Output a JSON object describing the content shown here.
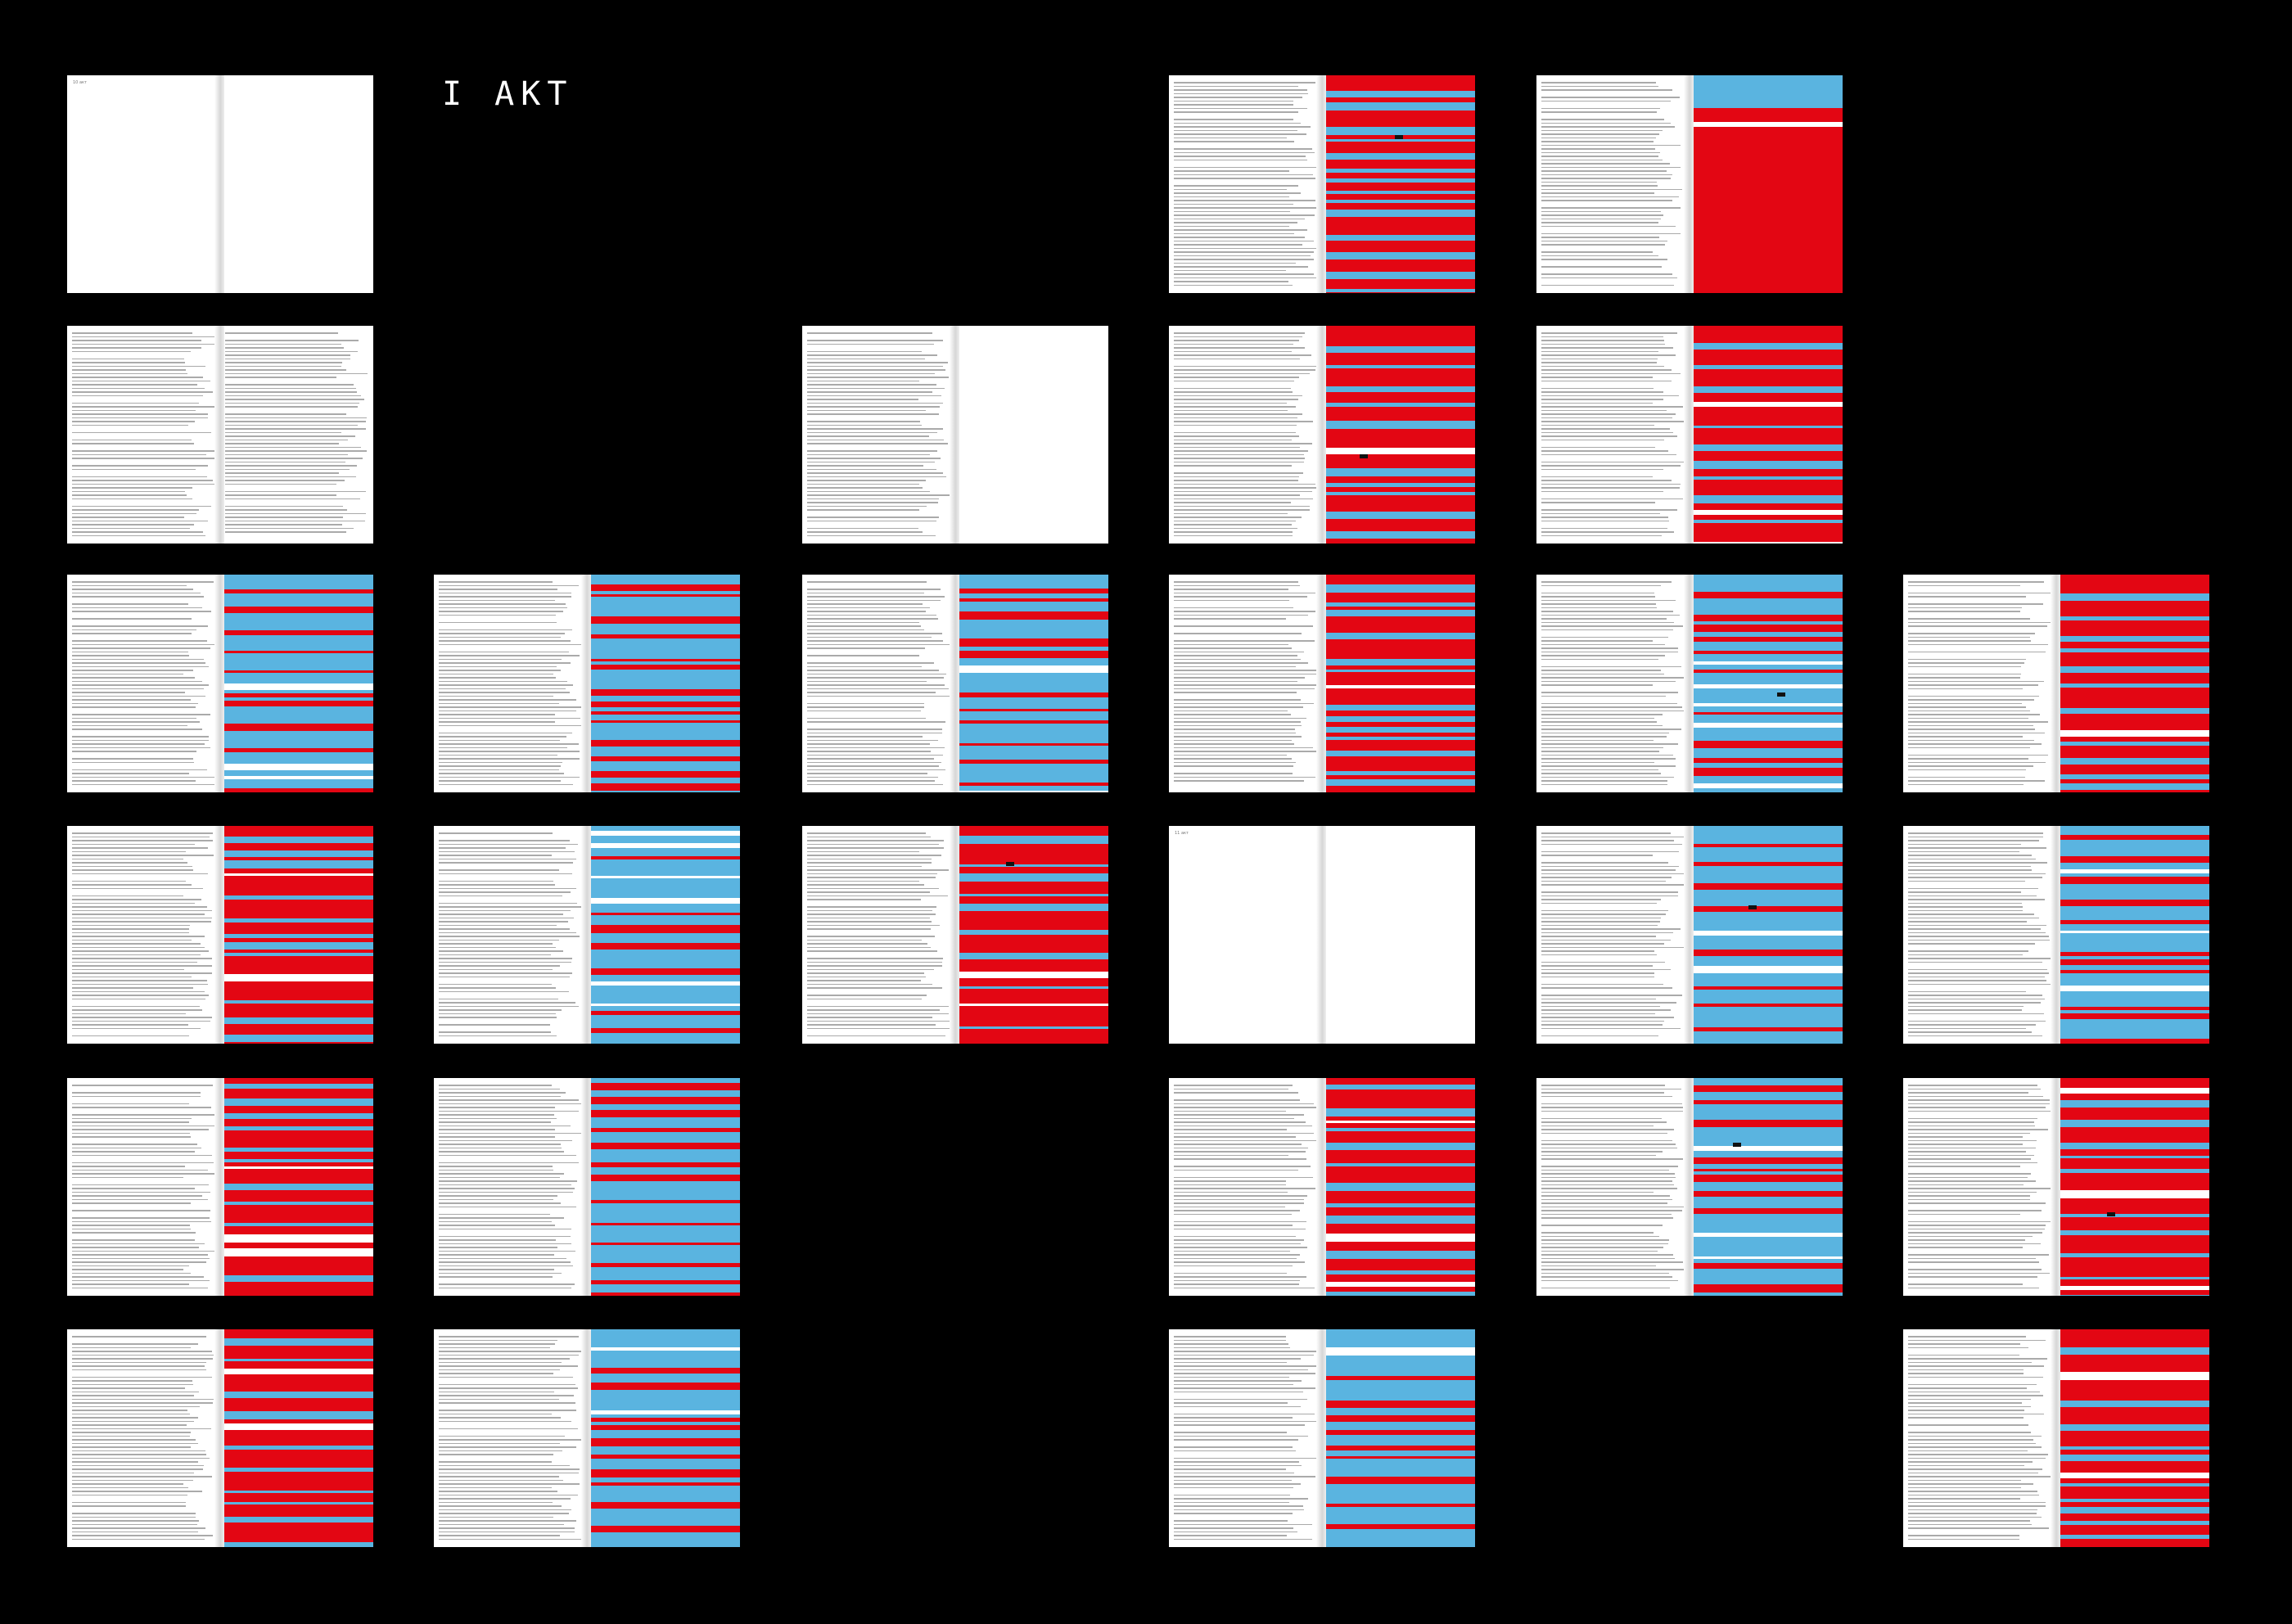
{
  "title": "I АКТ",
  "colors": {
    "red": "#e30613",
    "blue": "#5ab4e0",
    "white": "#ffffff",
    "background": "#000000"
  },
  "spreads": [
    {
      "pattern": "blank",
      "page_label": "10 акт"
    },
    {
      "pattern": "red"
    },
    {
      "pattern": "blue-top"
    },
    {
      "pattern": "text"
    },
    {
      "pattern": "none"
    },
    {
      "pattern": "red"
    },
    {
      "pattern": "red"
    },
    {
      "pattern": "blue"
    },
    {
      "pattern": "blue"
    },
    {
      "pattern": "blue"
    },
    {
      "pattern": "red"
    },
    {
      "pattern": "blue"
    },
    {
      "pattern": "red"
    },
    {
      "pattern": "red"
    },
    {
      "pattern": "blue"
    },
    {
      "pattern": "red"
    },
    {
      "pattern": "blank",
      "page_label": "11 акт"
    },
    {
      "pattern": "blue"
    },
    {
      "pattern": "blue"
    },
    {
      "pattern": "red"
    },
    {
      "pattern": "blue"
    },
    {
      "pattern": "red"
    },
    {
      "pattern": "blue"
    },
    {
      "pattern": "red"
    },
    {
      "pattern": "red"
    },
    {
      "pattern": "blue"
    },
    {
      "pattern": "blue"
    },
    {
      "pattern": "red"
    },
    {
      "pattern": "blue"
    }
  ]
}
